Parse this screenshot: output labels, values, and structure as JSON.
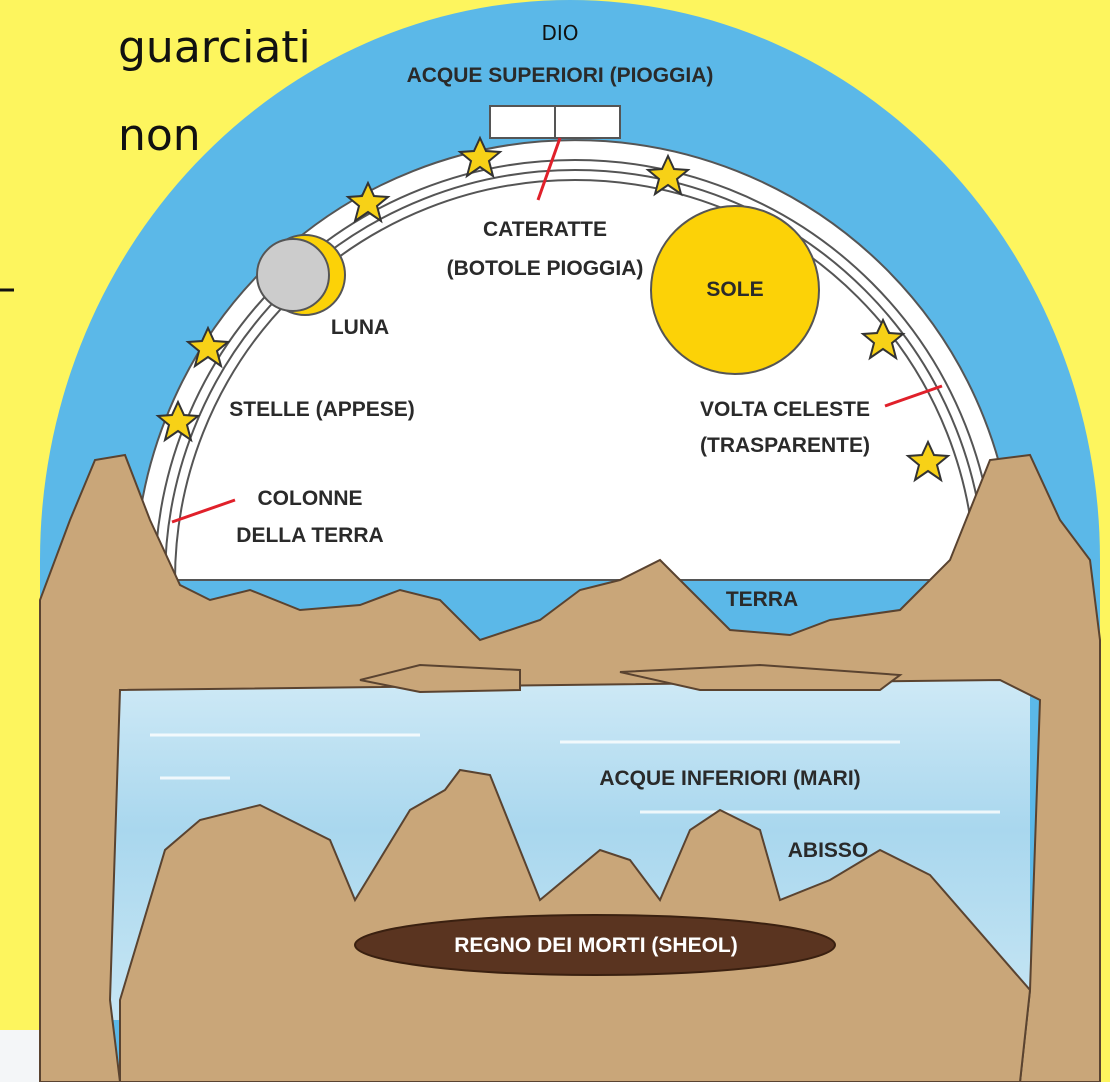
{
  "side_text": {
    "lines": [
      "guarciati",
      "non"
    ]
  },
  "diagram": {
    "top": {
      "god": "DIO",
      "upper_waters": "ACQUE SUPERIORI (PIOGGIA)"
    },
    "labels": {
      "floodgates": [
        "CATERATTE",
        "(BOTOLE PIOGGIA)"
      ],
      "sun": "SOLE",
      "moon": "LUNA",
      "stars": "STELLE (APPESE)",
      "firmament": [
        "VOLTA CELESTE",
        "(TRASPARENTE)"
      ],
      "pillars": [
        "COLONNE",
        "DELLA TERRA"
      ],
      "earth": "TERRA",
      "lower_waters": "ACQUE INFERIORI (MARI)",
      "abyss": "ABISSO",
      "sheol": "REGNO DEI MORTI (SHEOL)"
    }
  }
}
